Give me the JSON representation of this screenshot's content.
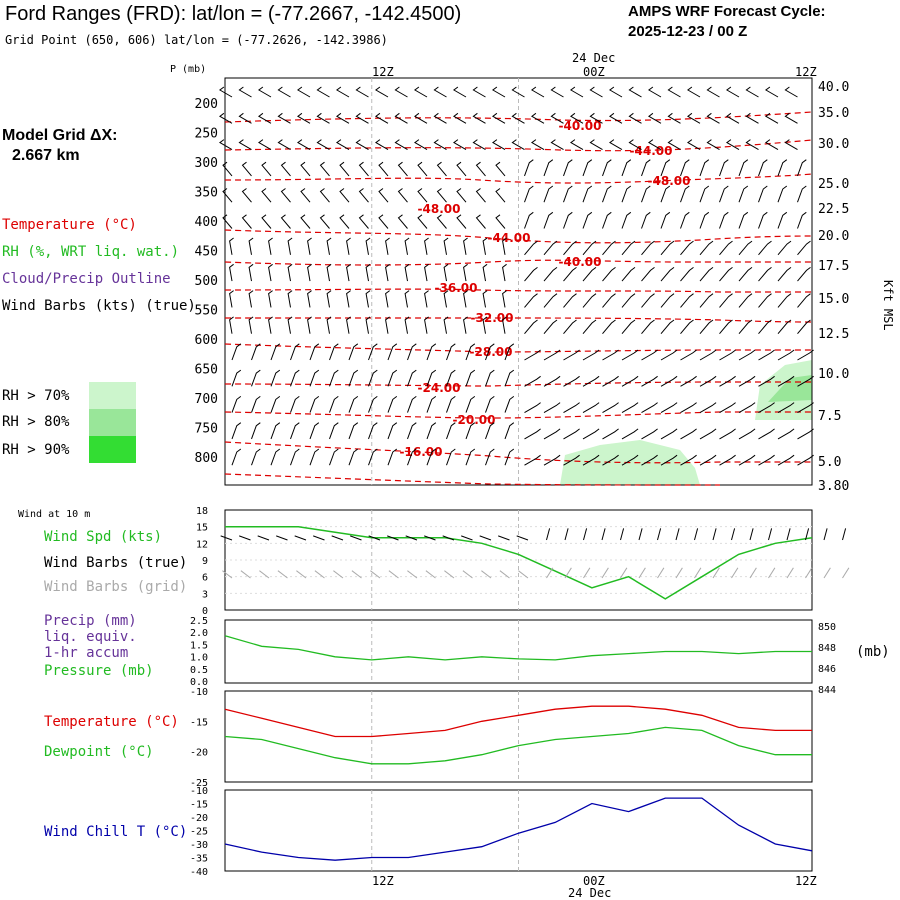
{
  "header": {
    "title": "Ford Ranges (FRD):  lat/lon = (-77.2667, -142.4500)",
    "grid_point": "Grid Point (650, 606) lat/lon = (-77.2626, -142.3986)",
    "cycle_line1": "AMPS WRF Forecast Cycle:",
    "cycle_line2": "2025-12-23 / 00  Z"
  },
  "sidebar": {
    "model_grid_line1": "Model Grid ΔX:",
    "model_grid_line2": "2.667 km",
    "legend_temperature": "Temperature (°C)",
    "legend_rh": "RH (%, WRT liq. wat.)",
    "legend_cloud": "Cloud/Precip Outline",
    "legend_wind": "Wind Barbs (kts) (true)",
    "rh70": "RH > 70%",
    "rh80": "RH > 80%",
    "rh90": "RH > 90%"
  },
  "colors": {
    "temperature": "#dd0000",
    "rh": "#22bb22",
    "cloud": "#663399",
    "wind": "#000000",
    "grid_wind": "#aaaaaa",
    "windchill": "#0000aa",
    "rh70": "#ccf5cc",
    "rh80": "#99e699",
    "rh90": "#33dd33"
  },
  "time_axis": {
    "labels": [
      "12Z",
      "00Z",
      "12Z"
    ],
    "date": "24 Dec",
    "p_unit": "P (mb)",
    "kft": "Kft MSL"
  },
  "sfc_panel": {
    "title": "Wind at 10 m",
    "label_speed": "Wind Spd (kts)",
    "label_barbs_true": "Wind Barbs (true)",
    "label_barbs_grid": "Wind Barbs (grid)",
    "label_precip": "Precip (mm)",
    "label_precip2": "liq. equiv.",
    "label_precip3": "1-hr accum",
    "label_pressure": "Pressure (mb)",
    "pressure_unit": "(mb)",
    "label_temperature": "Temperature (°C)",
    "label_dewpoint": "Dewpoint (°C)",
    "label_windchill": "Wind Chill T (°C)"
  },
  "chart_data": [
    {
      "type": "line",
      "panel": "cross-section",
      "y_ticks_pressure": [
        "200",
        "250",
        "300",
        "350",
        "400",
        "450",
        "500",
        "550",
        "600",
        "650",
        "700",
        "750",
        "800"
      ],
      "y_ticks_kft": [
        "40.0",
        "35.0",
        "30.0",
        "25.0",
        "22.5",
        "20.0",
        "17.5",
        "15.0",
        "12.5",
        "10.0",
        "7.5",
        "5.0",
        "3.80"
      ],
      "temperature_labels": [
        "-40.00",
        "-44.00",
        "-48.00",
        "-48.00",
        "-44.00",
        "-40.00",
        "-36.00",
        "-32.00",
        "-28.00",
        "-24.00",
        "-20.00",
        "-16.00"
      ],
      "x_hours": [
        0,
        24,
        48
      ]
    },
    {
      "type": "line",
      "panel": "wind-speed",
      "y_ticks": [
        "18",
        "15",
        "12",
        "9",
        "6",
        "3",
        "0"
      ],
      "ylim": [
        0,
        18
      ],
      "x": [
        0,
        3,
        6,
        9,
        12,
        15,
        18,
        21,
        24,
        27,
        30,
        33,
        36,
        39,
        42,
        45,
        48
      ],
      "series": [
        {
          "name": "Wind Spd (kts)",
          "values": [
            15,
            15,
            15,
            14,
            13,
            13,
            13,
            12,
            10,
            7,
            4,
            6,
            2,
            6,
            10,
            12,
            13
          ]
        }
      ]
    },
    {
      "type": "line",
      "panel": "precip-pressure",
      "y_ticks_left": [
        "2.5",
        "2.0",
        "1.5",
        "1.0",
        "0.5",
        "0.0"
      ],
      "y_ticks_right": [
        "850",
        "848",
        "846",
        "844"
      ],
      "series": [
        {
          "name": "Pressure (mb)",
          "values": [
            848.5,
            847.5,
            847.2,
            846.5,
            846.2,
            846.5,
            846.2,
            846.5,
            846.3,
            846.2,
            846.6,
            846.8,
            847,
            847,
            846.8,
            847,
            847
          ]
        }
      ]
    },
    {
      "type": "line",
      "panel": "temperature",
      "y_ticks": [
        "-10",
        "-15",
        "-20",
        "-25"
      ],
      "ylim": [
        -25,
        -10
      ],
      "series": [
        {
          "name": "Temperature (°C)",
          "values": [
            -13,
            -14.5,
            -16,
            -17.5,
            -17.5,
            -17,
            -16.5,
            -15,
            -14,
            -13,
            -12.5,
            -12.5,
            -13,
            -14,
            -16,
            -16.5,
            -16.5
          ]
        },
        {
          "name": "Dewpoint (°C)",
          "values": [
            -17.5,
            -18,
            -19.5,
            -21,
            -22,
            -22,
            -21.5,
            -20.5,
            -19,
            -18,
            -17.5,
            -17,
            -16,
            -16.5,
            -19,
            -20.5,
            -20.5
          ]
        }
      ]
    },
    {
      "type": "line",
      "panel": "windchill",
      "y_ticks": [
        "-10",
        "-15",
        "-20",
        "-25",
        "-30",
        "-35",
        "-40"
      ],
      "ylim": [
        -40,
        -10
      ],
      "series": [
        {
          "name": "Wind Chill T (°C)",
          "values": [
            -30,
            -33,
            -35,
            -36,
            -35,
            -35,
            -33,
            -31,
            -26,
            -22,
            -15,
            -18,
            -13,
            -13,
            -23,
            -30,
            -32.5
          ]
        }
      ]
    }
  ]
}
